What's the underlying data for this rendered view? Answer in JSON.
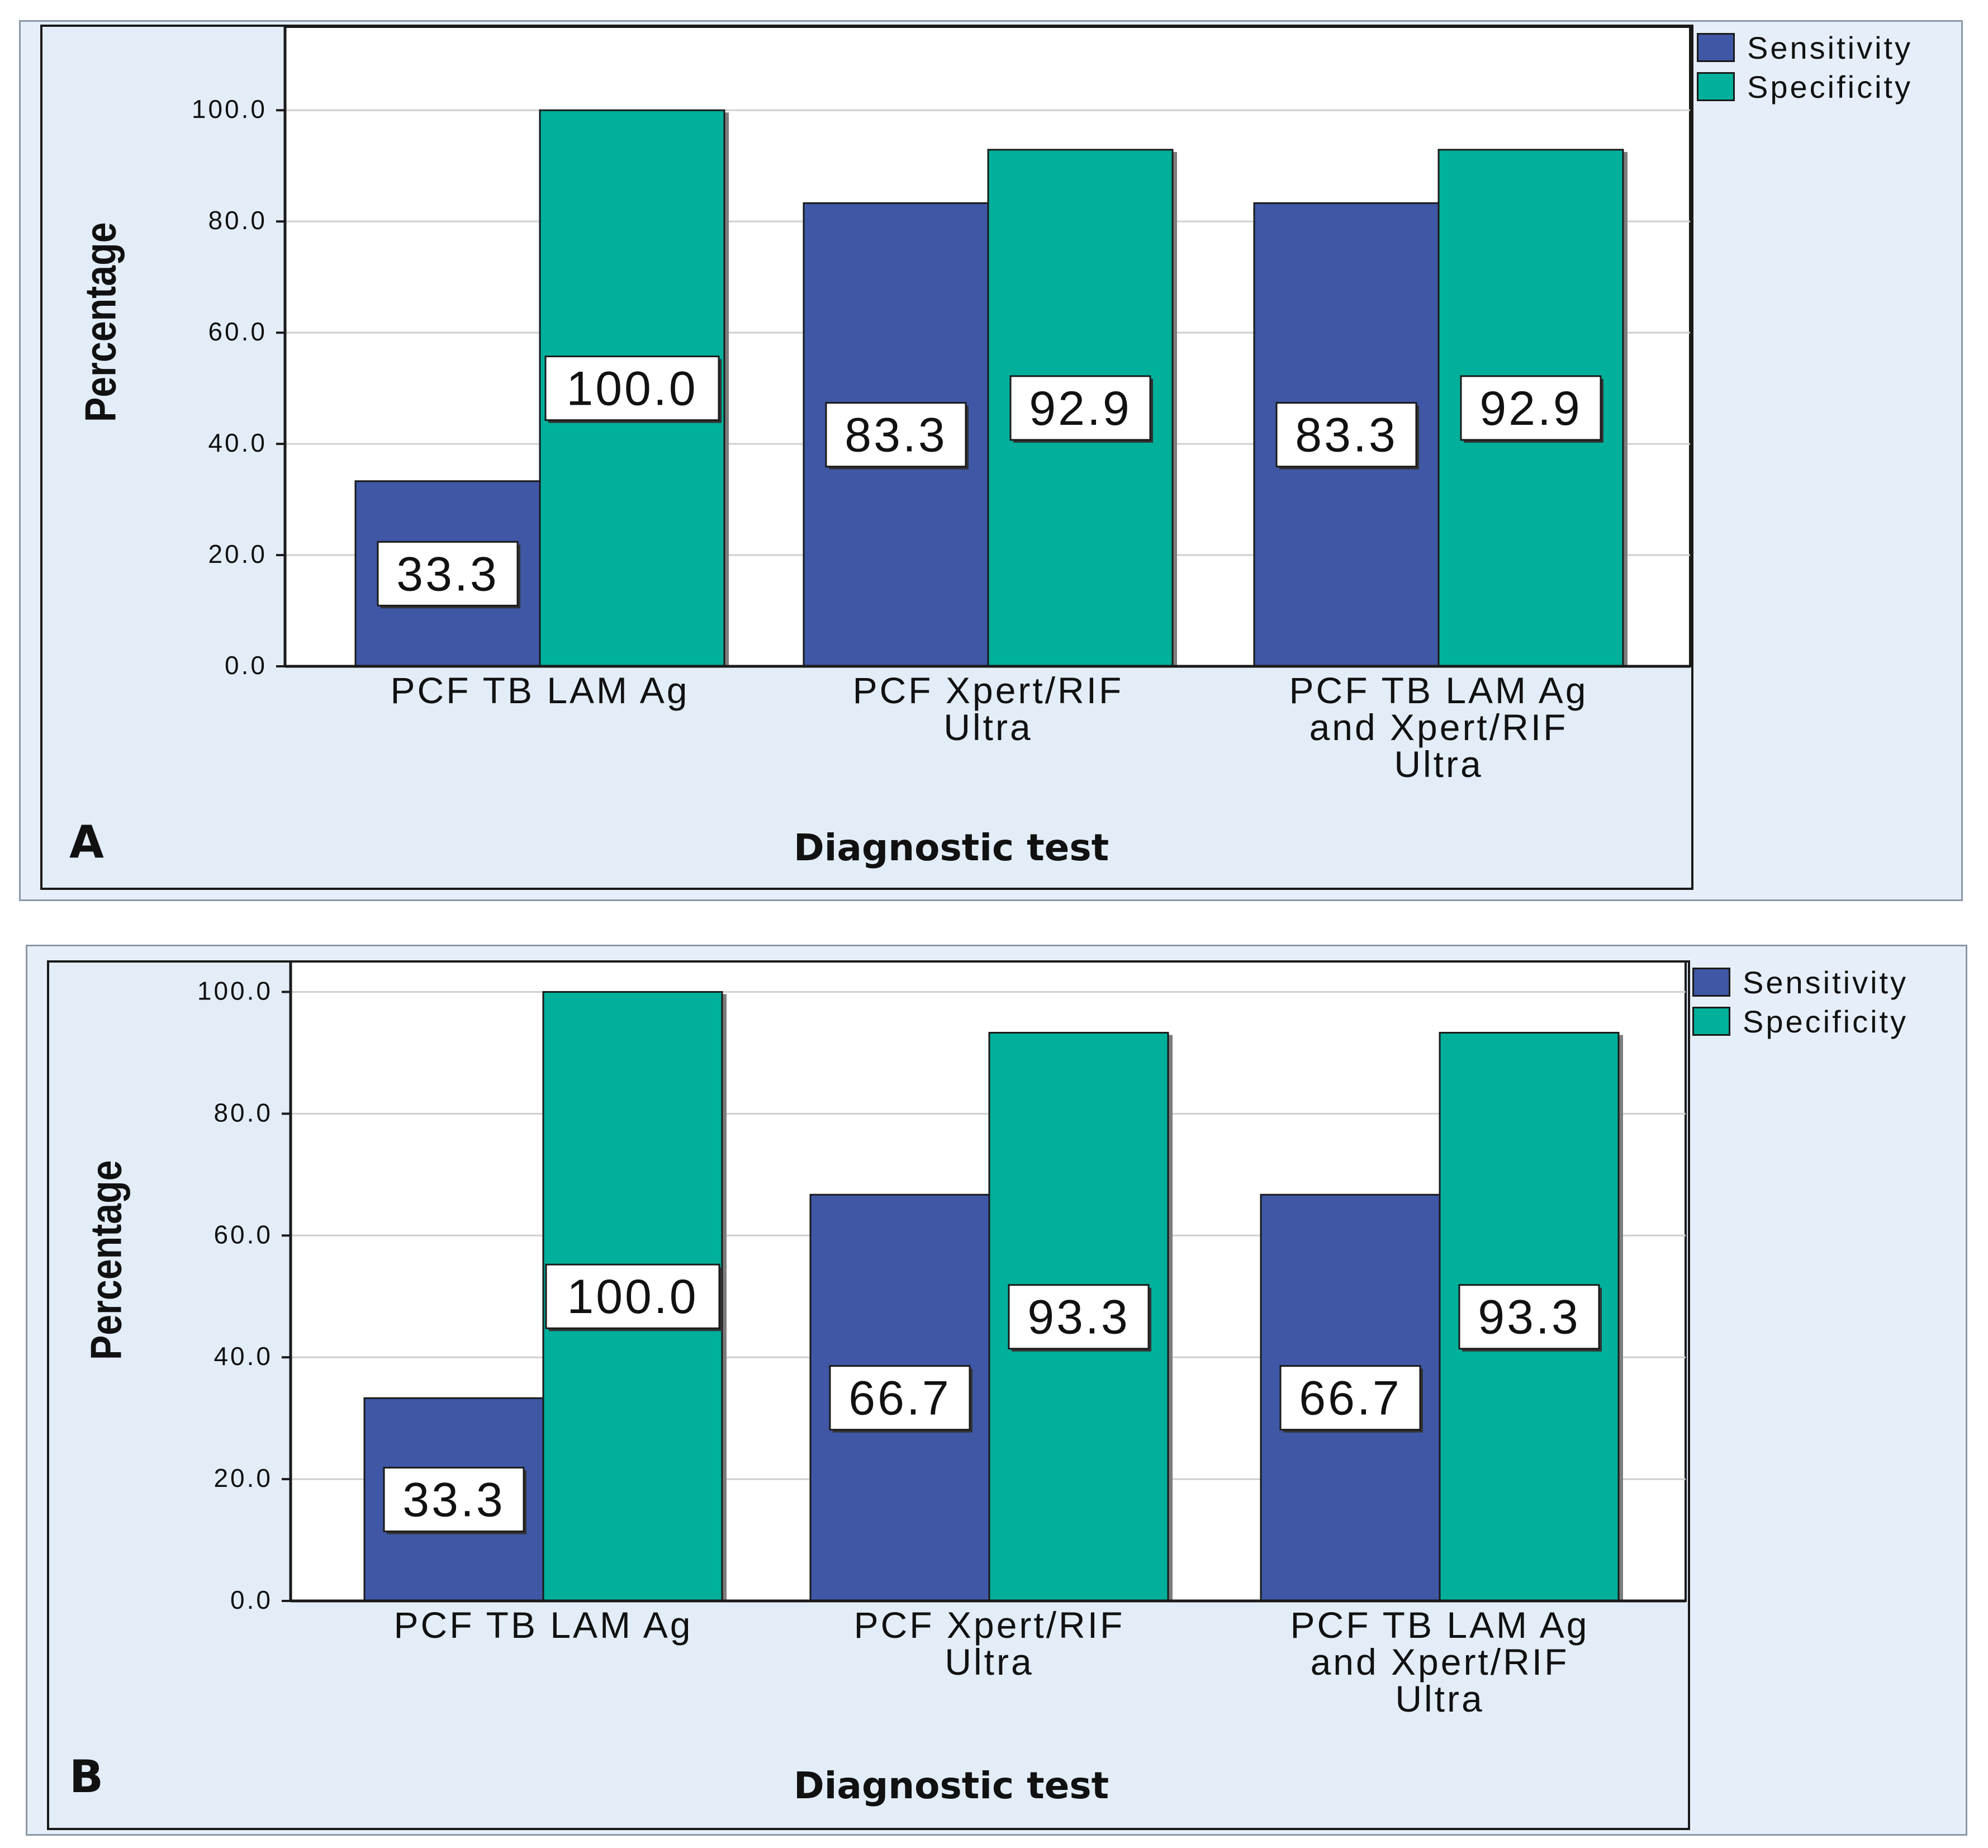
{
  "colors": {
    "sensitivity": "#3f57a4",
    "specificity": "#00b09b",
    "plot_bg": "#ffffff",
    "panel_bg": "#e3edf8"
  },
  "chart_data": [
    {
      "panel": "A",
      "type": "bar",
      "categories": [
        [
          "PCF TB LAM Ag"
        ],
        [
          "PCF Xpert/RIF",
          "Ultra"
        ],
        [
          "PCF TB LAM Ag",
          "and Xpert/RIF",
          "Ultra"
        ]
      ],
      "series": [
        {
          "name": "Sensitivity",
          "values": [
            33.3,
            83.3,
            83.3
          ],
          "labels": [
            "33.3",
            "83.3",
            "83.3"
          ]
        },
        {
          "name": "Specificity",
          "values": [
            100.0,
            92.9,
            92.9
          ],
          "labels": [
            "100.0",
            "92.9",
            "92.9"
          ]
        }
      ],
      "xlabel": "Diagnostic test",
      "ylabel": "Percentage",
      "ylim": [
        0,
        115
      ],
      "yticks": [
        0,
        20,
        40,
        60,
        80,
        100
      ],
      "ytick_labels": [
        "0.0",
        "20.0",
        "40.0",
        "60.0",
        "80.0",
        "100.0"
      ],
      "legend": [
        "Sensitivity",
        "Specificity"
      ]
    },
    {
      "panel": "B",
      "type": "bar",
      "categories": [
        [
          "PCF TB LAM Ag"
        ],
        [
          "PCF Xpert/RIF",
          "Ultra"
        ],
        [
          "PCF TB LAM Ag",
          "and Xpert/RIF",
          "Ultra"
        ]
      ],
      "series": [
        {
          "name": "Sensitivity",
          "values": [
            33.3,
            66.7,
            66.7
          ],
          "labels": [
            "33.3",
            "66.7",
            "66.7"
          ]
        },
        {
          "name": "Specificity",
          "values": [
            100.0,
            93.3,
            93.3
          ],
          "labels": [
            "100.0",
            "93.3",
            "93.3"
          ]
        }
      ],
      "xlabel": "Diagnostic test",
      "ylabel": "Percentage",
      "ylim": [
        0,
        105
      ],
      "yticks": [
        0,
        20,
        40,
        60,
        80,
        100
      ],
      "ytick_labels": [
        "0.0",
        "20.0",
        "40.0",
        "60.0",
        "80.0",
        "100.0"
      ],
      "legend": [
        "Sensitivity",
        "Specificity"
      ]
    }
  ]
}
